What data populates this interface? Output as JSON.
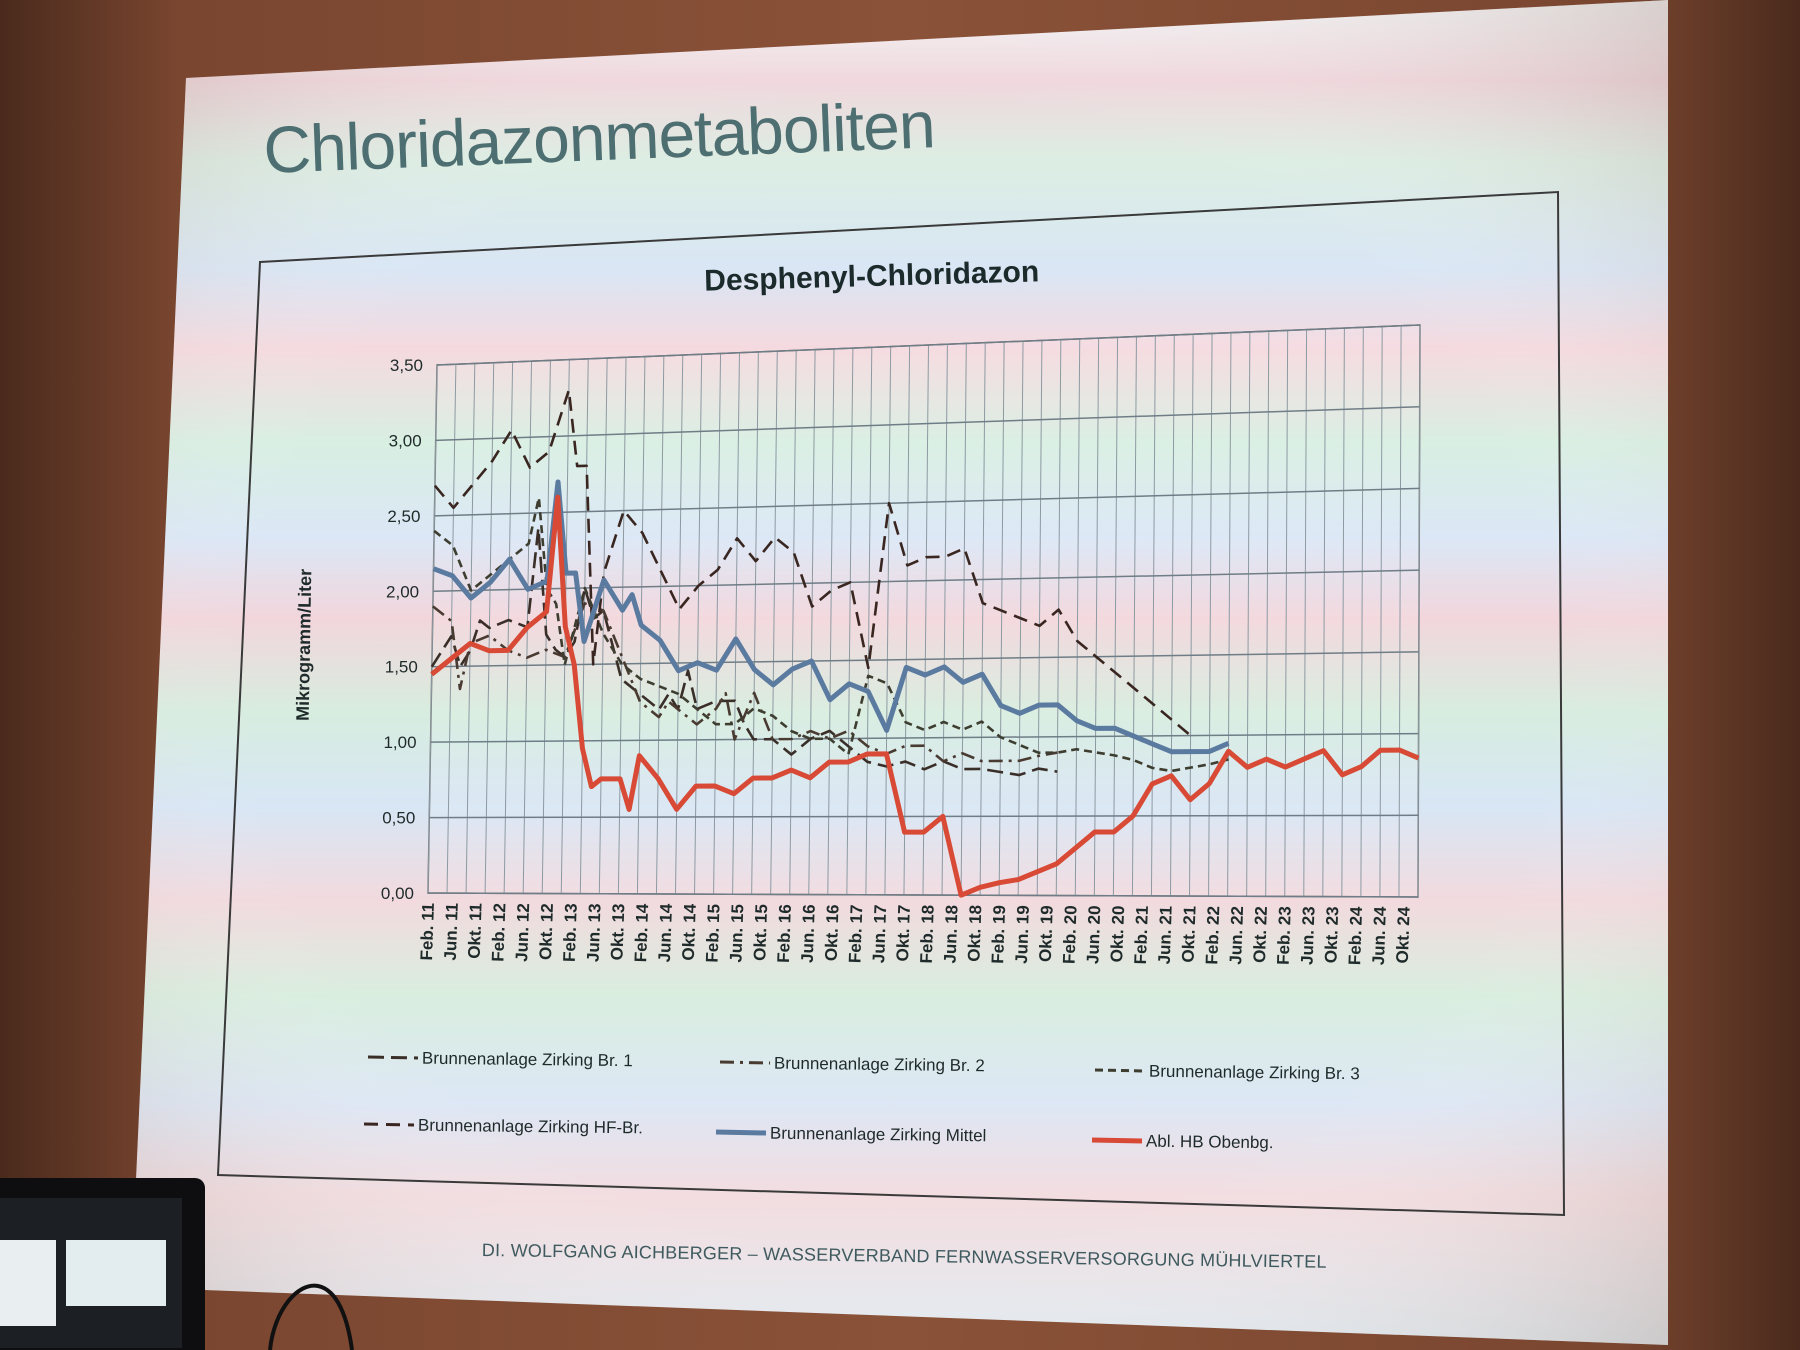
{
  "slide": {
    "title": "Chloridazonmetaboliten",
    "footer": "DI. WOLFGANG AICHBERGER – WASSERVERBAND FERNWASSERVERSORGUNG MÜHLVIERTEL"
  },
  "chart_data": {
    "type": "line",
    "title": "Desphenyl-Chloridazon",
    "ylabel": "Mikrogramm/Liter",
    "xlabel": "",
    "ylim": [
      0,
      3.5
    ],
    "yticks": [
      "0,00",
      "0,50",
      "1,00",
      "1,50",
      "2,00",
      "2,50",
      "3,00",
      "3,50"
    ],
    "x_tick_labels": [
      "Feb. 11",
      "Jun. 11",
      "Okt. 11",
      "Feb. 12",
      "Jun. 12",
      "Okt. 12",
      "Feb. 13",
      "Jun. 13",
      "Okt. 13",
      "Feb. 14",
      "Jun. 14",
      "Okt. 14",
      "Feb. 15",
      "Jun. 15",
      "Okt. 15",
      "Feb. 16",
      "Jun. 16",
      "Okt. 16",
      "Feb. 17",
      "Jun. 17",
      "Okt. 17",
      "Feb. 18",
      "Jun. 18",
      "Okt. 18",
      "Feb. 19",
      "Jun. 19",
      "Okt. 19",
      "Feb. 20",
      "Jun. 20",
      "Okt. 20",
      "Feb. 21",
      "Jun. 21",
      "Okt. 21",
      "Feb. 22",
      "Jun. 22",
      "Okt. 22",
      "Feb. 23",
      "Jun. 23",
      "Okt. 23",
      "Feb. 24",
      "Jun. 24",
      "Okt. 24"
    ],
    "grid": true,
    "legend_position": "bottom",
    "series": [
      {
        "name": "Brunnenanlage Zirking Br. 1",
        "style": "long-dash",
        "color": "#3a2e28",
        "points": [
          [
            0,
            1.5
          ],
          [
            1,
            1.7
          ],
          [
            1.5,
            1.5
          ],
          [
            2,
            1.6
          ],
          [
            2.5,
            1.8
          ],
          [
            3,
            1.75
          ],
          [
            4,
            1.8
          ],
          [
            5,
            1.75
          ],
          [
            5.5,
            2.4
          ],
          [
            6,
            1.7
          ],
          [
            6.5,
            1.6
          ],
          [
            7,
            1.55
          ],
          [
            7.5,
            1.65
          ],
          [
            8,
            2.0
          ],
          [
            8.5,
            1.8
          ],
          [
            9,
            1.85
          ],
          [
            10,
            1.4
          ],
          [
            11,
            1.3
          ],
          [
            12,
            1.2
          ],
          [
            12.5,
            1.3
          ],
          [
            13,
            1.2
          ],
          [
            13.5,
            1.45
          ],
          [
            14,
            1.2
          ],
          [
            15,
            1.25
          ],
          [
            16,
            1.25
          ],
          [
            16.5,
            1.1
          ],
          [
            17,
            1.0
          ],
          [
            18,
            1.0
          ],
          [
            19,
            0.9
          ],
          [
            20,
            1.0
          ],
          [
            21,
            1.05
          ],
          [
            22,
            0.95
          ],
          [
            23,
            0.85
          ],
          [
            24,
            0.82
          ],
          [
            25,
            0.85
          ],
          [
            26,
            0.8
          ],
          [
            27,
            0.85
          ],
          [
            28,
            0.8
          ],
          [
            29,
            0.8
          ],
          [
            30,
            0.78
          ],
          [
            31,
            0.76
          ],
          [
            32,
            0.8
          ],
          [
            33,
            0.78
          ]
        ]
      },
      {
        "name": "Brunnenanlage Zirking Br. 2",
        "style": "dash-dot",
        "color": "#4a3b32",
        "points": [
          [
            0,
            1.9
          ],
          [
            1,
            1.8
          ],
          [
            1.5,
            1.35
          ],
          [
            2,
            1.65
          ],
          [
            3,
            1.7
          ],
          [
            4,
            1.6
          ],
          [
            5,
            1.55
          ],
          [
            6,
            1.6
          ],
          [
            7,
            1.55
          ],
          [
            8,
            1.9
          ],
          [
            9,
            1.85
          ],
          [
            10,
            1.55
          ],
          [
            11,
            1.25
          ],
          [
            12,
            1.15
          ],
          [
            12.5,
            1.25
          ],
          [
            13,
            1.2
          ],
          [
            14,
            1.1
          ],
          [
            15,
            1.2
          ],
          [
            15.5,
            1.3
          ],
          [
            16,
            1.0
          ],
          [
            17,
            1.3
          ],
          [
            17.5,
            1.15
          ],
          [
            18,
            1.0
          ],
          [
            19,
            1.0
          ],
          [
            20,
            1.05
          ],
          [
            21,
            1.0
          ],
          [
            22,
            1.05
          ],
          [
            23,
            0.95
          ],
          [
            24,
            0.9
          ],
          [
            25,
            0.95
          ],
          [
            26,
            0.95
          ],
          [
            27,
            0.85
          ],
          [
            28,
            0.9
          ],
          [
            29,
            0.85
          ],
          [
            30,
            0.85
          ],
          [
            31,
            0.85
          ],
          [
            32,
            0.88
          ],
          [
            33,
            0.9
          ]
        ]
      },
      {
        "name": "Brunnenanlage Zirking Br. 3",
        "style": "short-dash",
        "color": "#3d3d30",
        "points": [
          [
            0,
            2.4
          ],
          [
            1,
            2.3
          ],
          [
            2,
            2.0
          ],
          [
            3,
            2.1
          ],
          [
            4,
            2.2
          ],
          [
            5,
            2.3
          ],
          [
            5.5,
            2.6
          ],
          [
            6,
            2.0
          ],
          [
            6.5,
            1.9
          ],
          [
            7,
            1.5
          ],
          [
            8,
            2.0
          ],
          [
            9,
            1.7
          ],
          [
            10,
            1.5
          ],
          [
            11,
            1.4
          ],
          [
            12,
            1.35
          ],
          [
            13,
            1.3
          ],
          [
            14,
            1.2
          ],
          [
            15,
            1.1
          ],
          [
            16,
            1.1
          ],
          [
            17,
            1.2
          ],
          [
            18,
            1.15
          ],
          [
            19,
            1.05
          ],
          [
            20,
            1.0
          ],
          [
            21,
            1.0
          ],
          [
            22,
            0.9
          ],
          [
            23,
            1.4
          ],
          [
            24,
            1.35
          ],
          [
            25,
            1.1
          ],
          [
            26,
            1.05
          ],
          [
            27,
            1.1
          ],
          [
            28,
            1.05
          ],
          [
            29,
            1.1
          ],
          [
            30,
            1.0
          ],
          [
            31,
            0.95
          ],
          [
            32,
            0.9
          ],
          [
            33,
            0.9
          ],
          [
            34,
            0.92
          ],
          [
            35,
            0.9
          ],
          [
            36,
            0.88
          ],
          [
            37,
            0.85
          ],
          [
            38,
            0.8
          ],
          [
            39,
            0.78
          ],
          [
            40,
            0.8
          ],
          [
            41,
            0.82
          ],
          [
            42,
            0.85
          ]
        ]
      },
      {
        "name": "Brunnenanlage Zirking HF-Br.",
        "style": "dash",
        "color": "#3a2620",
        "points": [
          [
            0,
            2.7
          ],
          [
            1,
            2.55
          ],
          [
            2,
            2.7
          ],
          [
            3,
            2.85
          ],
          [
            4,
            3.05
          ],
          [
            5,
            2.8
          ],
          [
            6,
            2.9
          ],
          [
            6.5,
            3.1
          ],
          [
            7,
            3.3
          ],
          [
            7.5,
            2.8
          ],
          [
            8,
            2.8
          ],
          [
            8.5,
            1.5
          ],
          [
            9,
            2.1
          ],
          [
            10,
            2.5
          ],
          [
            11,
            2.35
          ],
          [
            12,
            2.1
          ],
          [
            13,
            1.85
          ],
          [
            14,
            2.0
          ],
          [
            15,
            2.1
          ],
          [
            16,
            2.3
          ],
          [
            17,
            2.15
          ],
          [
            18,
            2.3
          ],
          [
            19,
            2.2
          ],
          [
            20,
            1.85
          ],
          [
            21,
            1.95
          ],
          [
            22,
            2.0
          ],
          [
            23,
            1.45
          ],
          [
            24,
            2.5
          ],
          [
            25,
            2.1
          ],
          [
            26,
            2.15
          ],
          [
            27,
            2.15
          ],
          [
            28,
            2.2
          ],
          [
            29,
            1.85
          ],
          [
            30,
            1.8
          ],
          [
            31,
            1.75
          ],
          [
            32,
            1.7
          ],
          [
            33,
            1.8
          ],
          [
            34,
            1.6
          ],
          [
            35,
            1.5
          ],
          [
            36,
            1.4
          ],
          [
            37,
            1.3
          ],
          [
            38,
            1.2
          ],
          [
            39,
            1.1
          ],
          [
            40,
            1.0
          ]
        ]
      },
      {
        "name": "Brunnenanlage Zirking Mittel",
        "style": "solid",
        "color": "#5a7aa0",
        "points": [
          [
            0,
            2.15
          ],
          [
            1,
            2.1
          ],
          [
            2,
            1.95
          ],
          [
            3,
            2.05
          ],
          [
            4,
            2.2
          ],
          [
            5,
            2.0
          ],
          [
            6,
            2.05
          ],
          [
            6.5,
            2.7
          ],
          [
            7,
            2.1
          ],
          [
            7.5,
            2.1
          ],
          [
            8,
            1.65
          ],
          [
            9,
            2.05
          ],
          [
            10,
            1.85
          ],
          [
            10.5,
            1.95
          ],
          [
            11,
            1.75
          ],
          [
            12,
            1.65
          ],
          [
            13,
            1.45
          ],
          [
            14,
            1.5
          ],
          [
            15,
            1.45
          ],
          [
            16,
            1.65
          ],
          [
            17,
            1.45
          ],
          [
            18,
            1.35
          ],
          [
            19,
            1.45
          ],
          [
            20,
            1.5
          ],
          [
            21,
            1.25
          ],
          [
            22,
            1.35
          ],
          [
            23,
            1.3
          ],
          [
            24,
            1.05
          ],
          [
            25,
            1.45
          ],
          [
            26,
            1.4
          ],
          [
            27,
            1.45
          ],
          [
            28,
            1.35
          ],
          [
            29,
            1.4
          ],
          [
            30,
            1.2
          ],
          [
            31,
            1.15
          ],
          [
            32,
            1.2
          ],
          [
            33,
            1.2
          ],
          [
            34,
            1.1
          ],
          [
            35,
            1.05
          ],
          [
            36,
            1.05
          ],
          [
            37,
            1.0
          ],
          [
            38,
            0.95
          ],
          [
            39,
            0.9
          ],
          [
            40,
            0.9
          ],
          [
            41,
            0.9
          ],
          [
            42,
            0.95
          ]
        ]
      },
      {
        "name": "Abl. HB Obenbg.",
        "style": "solid",
        "color": "#d84a36",
        "points": [
          [
            0,
            1.45
          ],
          [
            1,
            1.55
          ],
          [
            2,
            1.65
          ],
          [
            3,
            1.6
          ],
          [
            4,
            1.6
          ],
          [
            5,
            1.75
          ],
          [
            6,
            1.85
          ],
          [
            6.5,
            2.6
          ],
          [
            7,
            1.75
          ],
          [
            7.5,
            1.5
          ],
          [
            8,
            0.95
          ],
          [
            8.5,
            0.7
          ],
          [
            9,
            0.75
          ],
          [
            10,
            0.75
          ],
          [
            10.5,
            0.55
          ],
          [
            11,
            0.9
          ],
          [
            12,
            0.75
          ],
          [
            13,
            0.55
          ],
          [
            14,
            0.7
          ],
          [
            15,
            0.7
          ],
          [
            16,
            0.65
          ],
          [
            17,
            0.75
          ],
          [
            18,
            0.75
          ],
          [
            19,
            0.8
          ],
          [
            20,
            0.75
          ],
          [
            21,
            0.85
          ],
          [
            22,
            0.85
          ],
          [
            23,
            0.9
          ],
          [
            24,
            0.9
          ],
          [
            25,
            0.4
          ],
          [
            26,
            0.4
          ],
          [
            27,
            0.5
          ],
          [
            28,
            0.0
          ],
          [
            29,
            0.05
          ],
          [
            30,
            0.08
          ],
          [
            31,
            0.1
          ],
          [
            32,
            0.15
          ],
          [
            33,
            0.2
          ],
          [
            34,
            0.3
          ],
          [
            35,
            0.4
          ],
          [
            36,
            0.4
          ],
          [
            37,
            0.5
          ],
          [
            38,
            0.7
          ],
          [
            39,
            0.75
          ],
          [
            40,
            0.6
          ],
          [
            41,
            0.7
          ],
          [
            42,
            0.9
          ],
          [
            43,
            0.8
          ],
          [
            44,
            0.85
          ],
          [
            45,
            0.8
          ],
          [
            46,
            0.85
          ],
          [
            47,
            0.9
          ],
          [
            48,
            0.75
          ],
          [
            49,
            0.8
          ],
          [
            50,
            0.9
          ],
          [
            51,
            0.9
          ],
          [
            52,
            0.85
          ]
        ]
      }
    ]
  }
}
